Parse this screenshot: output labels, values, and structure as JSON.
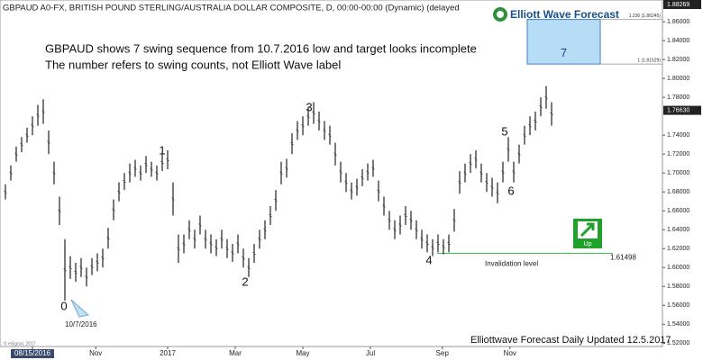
{
  "chart_data": {
    "type": "range",
    "title": "GBPAUD A0-FX, BRITISH POUND STERLING/AUSTRALIA DOLLAR COMPOSITE, D, 00:00-00:00 (Dynamic) (delayed",
    "brand": "Elliott Wave Forecast",
    "notes": [
      "GBPAUD shows 7 swing sequence from 10.7.2016 low and target looks incomplete",
      "The number refers to swing counts, not Elliott Wave label"
    ],
    "footer": "Elliottwave Forecast Daily Updated 12.5.2017",
    "copyright": "© eSignal, 2017",
    "start_date": "10/7/2016",
    "wave_labels": [
      "0",
      "1",
      "2",
      "3",
      "4",
      "5",
      "6"
    ],
    "color": "#222222",
    "series": [
      {
        "name": "High",
        "values": [
          1.688,
          1.708,
          1.728,
          1.738,
          1.748,
          1.76,
          1.772,
          1.778,
          1.745,
          1.712,
          1.675,
          1.63,
          1.612,
          1.605,
          1.61,
          1.6,
          1.61,
          1.615,
          1.62,
          1.642,
          1.672,
          1.69,
          1.7,
          1.71,
          1.714,
          1.708,
          1.718,
          1.712,
          1.708,
          1.72,
          1.724,
          1.69,
          1.635,
          1.635,
          1.65,
          1.64,
          1.655,
          1.64,
          1.635,
          1.63,
          1.64,
          1.63,
          1.625,
          1.635,
          1.62,
          1.61,
          1.625,
          1.64,
          1.65,
          1.665,
          1.682,
          1.712,
          1.715,
          1.742,
          1.755,
          1.76,
          1.77,
          1.775,
          1.765,
          1.755,
          1.75,
          1.732,
          1.712,
          1.7,
          1.69,
          1.694,
          1.704,
          1.71,
          1.714,
          1.692,
          1.675,
          1.66,
          1.65,
          1.655,
          1.665,
          1.66,
          1.65,
          1.64,
          1.635,
          1.63,
          1.635,
          1.63,
          1.635,
          1.662,
          1.702,
          1.71,
          1.72,
          1.724,
          1.71,
          1.7,
          1.695,
          1.69,
          1.712,
          1.738,
          1.712,
          1.73,
          1.75,
          1.76,
          1.765,
          1.78,
          1.792,
          1.775
        ]
      },
      {
        "name": "Low",
        "values": [
          1.672,
          1.692,
          1.712,
          1.722,
          1.732,
          1.74,
          1.75,
          1.752,
          1.72,
          1.688,
          1.645,
          1.565,
          1.588,
          1.585,
          1.59,
          1.58,
          1.592,
          1.596,
          1.6,
          1.62,
          1.65,
          1.67,
          1.682,
          1.69,
          1.696,
          1.692,
          1.7,
          1.696,
          1.692,
          1.702,
          1.704,
          1.655,
          1.605,
          1.615,
          1.63,
          1.62,
          1.635,
          1.62,
          1.615,
          1.612,
          1.62,
          1.61,
          1.606,
          1.615,
          1.6,
          1.59,
          1.605,
          1.62,
          1.63,
          1.645,
          1.66,
          1.688,
          1.695,
          1.72,
          1.735,
          1.74,
          1.75,
          1.752,
          1.745,
          1.735,
          1.73,
          1.708,
          1.69,
          1.68,
          1.672,
          1.676,
          1.686,
          1.692,
          1.696,
          1.67,
          1.655,
          1.64,
          1.63,
          1.635,
          1.645,
          1.64,
          1.63,
          1.62,
          1.616,
          1.612,
          1.616,
          1.614,
          1.616,
          1.638,
          1.678,
          1.69,
          1.7,
          1.705,
          1.69,
          1.68,
          1.675,
          1.668,
          1.69,
          1.712,
          1.69,
          1.71,
          1.73,
          1.74,
          1.745,
          1.76,
          1.768,
          1.75
        ]
      }
    ],
    "xlim": [
      -1,
      121.5
    ],
    "xticks": [
      {
        "value": 5,
        "label": "08/15/2016"
      },
      {
        "value": 16.7,
        "label": "Nov"
      },
      {
        "value": 30,
        "label": "2017"
      },
      {
        "value": 42.5,
        "label": "Mar"
      },
      {
        "value": 55,
        "label": "May"
      },
      {
        "value": 67.5,
        "label": "Jul"
      },
      {
        "value": 80.8,
        "label": "Sep"
      },
      {
        "value": 93.3,
        "label": "Nov"
      }
    ],
    "ylim": [
      1.506,
      1.883
    ],
    "yticks": [
      {
        "value": 1.52,
        "label": "1.52000"
      },
      {
        "value": 1.54,
        "label": "1.54000"
      },
      {
        "value": 1.56,
        "label": "1.56000"
      },
      {
        "value": 1.58,
        "label": "1.58000"
      },
      {
        "value": 1.6,
        "label": "1.60000"
      },
      {
        "value": 1.62,
        "label": "1.62000"
      },
      {
        "value": 1.64,
        "label": "1.64000"
      },
      {
        "value": 1.66,
        "label": "1.66000"
      },
      {
        "value": 1.68,
        "label": "1.68000"
      },
      {
        "value": 1.7,
        "label": "1.70000"
      },
      {
        "value": 1.72,
        "label": "1.72000"
      },
      {
        "value": 1.74,
        "label": "1.74000"
      },
      {
        "value": 1.78,
        "label": "1.78000"
      },
      {
        "value": 1.8,
        "label": "1.80000"
      },
      {
        "value": 1.82,
        "label": "1.82000"
      },
      {
        "value": 1.84,
        "label": "1.84000"
      },
      {
        "value": 1.86,
        "label": "1.86000"
      }
    ],
    "last_price": {
      "value": 1.7663,
      "label": "1.76630"
    },
    "high_price": 1.88269,
    "invalidation": {
      "value": 1.61498,
      "label": "Invalidation level"
    },
    "target_zone": {
      "low": 1.81529,
      "high": 1.86245,
      "low_label": "1 (1.81529)",
      "high_label": "1.236 (1.86245)",
      "label": "7",
      "color": "#b7dcf5"
    },
    "direction": "Up"
  }
}
